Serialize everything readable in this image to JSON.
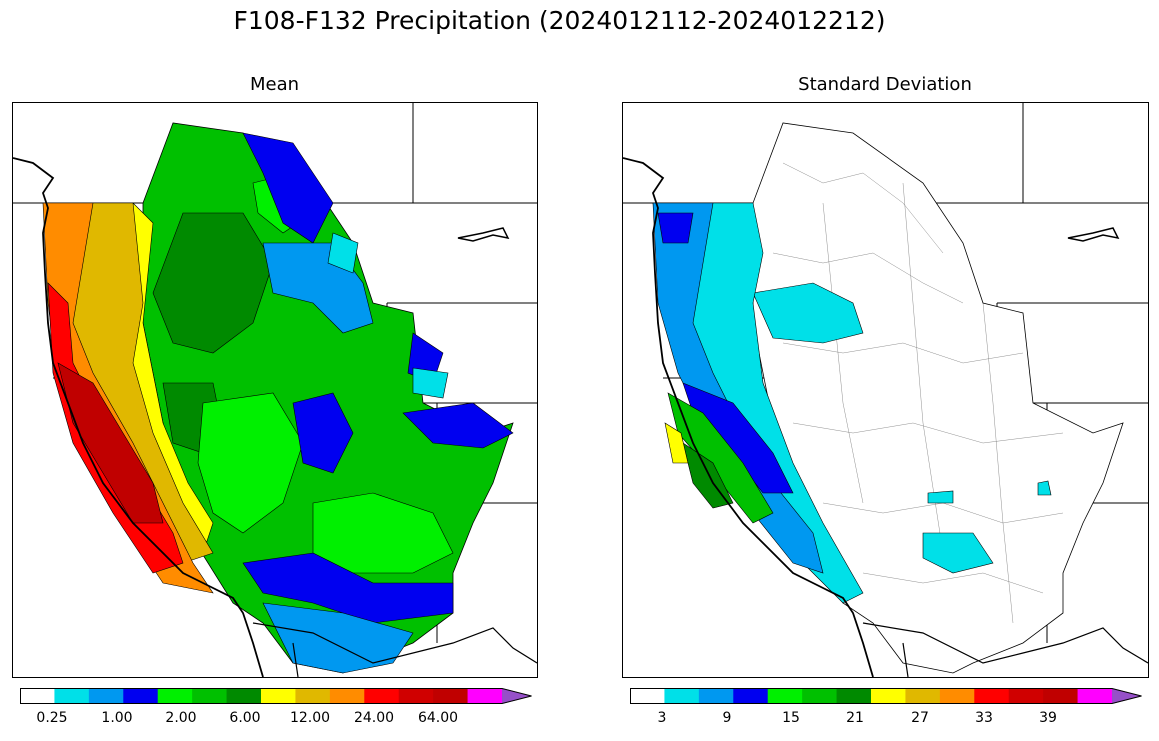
{
  "figure": {
    "title": "F108-F132 Precipitation (2024012112-2024012212)"
  },
  "panels": [
    {
      "id": "mean",
      "title": "Mean",
      "colorbar": {
        "colors": [
          "#ffffff",
          "#00e0e8",
          "#0098f0",
          "#0000f0",
          "#00f000",
          "#00c000",
          "#008a00",
          "#ffff00",
          "#e0b800",
          "#ff8c00",
          "#ff0000",
          "#d00000",
          "#c00000",
          "#ff00ff",
          "#9650c8"
        ],
        "tick_labels": [
          "0.25",
          "1.00",
          "2.00",
          "6.00",
          "12.00",
          "24.00",
          "64.00"
        ],
        "extend": "max"
      }
    },
    {
      "id": "stddev",
      "title": "Standard Deviation",
      "colorbar": {
        "colors": [
          "#ffffff",
          "#00e0e8",
          "#0098f0",
          "#0000f0",
          "#00f000",
          "#00c000",
          "#008a00",
          "#ffff00",
          "#e0b800",
          "#ff8c00",
          "#ff0000",
          "#d00000",
          "#c00000",
          "#ff00ff",
          "#9650c8"
        ],
        "tick_labels": [
          "3",
          "9",
          "15",
          "21",
          "27",
          "33",
          "39"
        ],
        "extend": "max"
      }
    }
  ]
}
